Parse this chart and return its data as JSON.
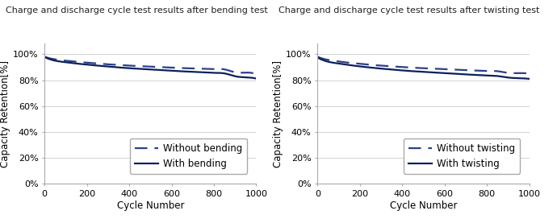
{
  "title_left": "Charge and discharge cycle test results after bending test",
  "title_right": "Charge and discharge cycle test results after twisting test",
  "xlabel": "Cycle Number",
  "ylabel": "Capacity Retention[%]",
  "xlim": [
    0,
    1000
  ],
  "ylim": [
    0,
    1.08
  ],
  "yticks": [
    0.0,
    0.2,
    0.4,
    0.6,
    0.8,
    1.0
  ],
  "xticks": [
    0,
    200,
    400,
    600,
    800,
    1000
  ],
  "legend_left": [
    "Without bending",
    "With bending"
  ],
  "legend_right": [
    "Without twisting",
    "With twisting"
  ],
  "color_dashed": "#2B3F8C",
  "color_solid": "#0D1F5C",
  "background_color": "#ffffff",
  "grid_color": "#cccccc",
  "title_fontsize": 8.0,
  "label_fontsize": 8.5,
  "tick_fontsize": 8.0,
  "legend_fontsize": 8.5,
  "x_curve": [
    0,
    50,
    100,
    150,
    200,
    250,
    300,
    350,
    400,
    450,
    500,
    550,
    600,
    650,
    700,
    750,
    800,
    850,
    900,
    950,
    1000
  ],
  "y_without_bending": [
    0.98,
    0.96,
    0.95,
    0.942,
    0.935,
    0.928,
    0.922,
    0.917,
    0.912,
    0.908,
    0.904,
    0.9,
    0.896,
    0.893,
    0.89,
    0.887,
    0.885,
    0.883,
    0.86,
    0.858,
    0.845
  ],
  "y_with_bending": [
    0.978,
    0.95,
    0.938,
    0.928,
    0.92,
    0.912,
    0.905,
    0.898,
    0.892,
    0.887,
    0.882,
    0.877,
    0.872,
    0.868,
    0.864,
    0.86,
    0.856,
    0.852,
    0.83,
    0.822,
    0.812
  ],
  "y_without_twisting": [
    0.98,
    0.956,
    0.944,
    0.934,
    0.926,
    0.918,
    0.912,
    0.906,
    0.901,
    0.896,
    0.892,
    0.888,
    0.884,
    0.88,
    0.877,
    0.874,
    0.871,
    0.869,
    0.856,
    0.854,
    0.85
  ],
  "y_with_twisting": [
    0.975,
    0.942,
    0.928,
    0.916,
    0.906,
    0.897,
    0.889,
    0.882,
    0.875,
    0.869,
    0.864,
    0.859,
    0.854,
    0.849,
    0.844,
    0.84,
    0.836,
    0.832,
    0.82,
    0.815,
    0.81
  ]
}
